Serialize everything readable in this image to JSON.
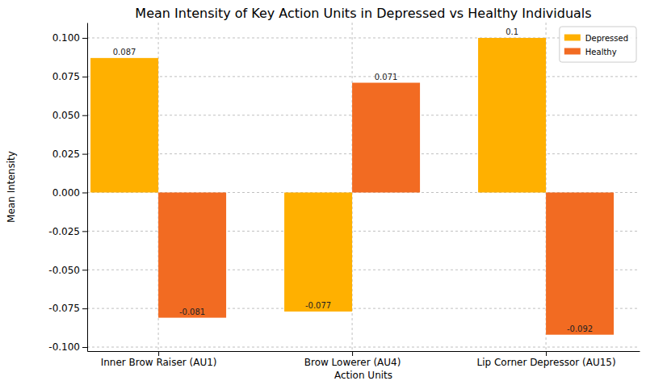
{
  "chart_data": {
    "type": "bar",
    "title": "Mean Intensity of Key Action Units in Depressed vs Healthy Individuals",
    "x_label": "Action Units",
    "y_label": "Mean Intensity",
    "categories": [
      "Inner Brow Raiser (AU1)",
      "Brow Lowerer (AU4)",
      "Lip Corner Depressor (AU15)"
    ],
    "series": [
      {
        "name": "Depressed",
        "color": "#ffb000",
        "values": [
          0.087,
          -0.077,
          0.1
        ]
      },
      {
        "name": "Healthy",
        "color": "#f26b22",
        "values": [
          -0.081,
          0.071,
          -0.092
        ]
      }
    ],
    "ylim": [
      -0.1026,
      0.1099
    ],
    "yticks": [
      {
        "value": -0.1,
        "label": "-0.100"
      },
      {
        "value": -0.075,
        "label": "-0.075"
      },
      {
        "value": -0.05,
        "label": "-0.050"
      },
      {
        "value": -0.025,
        "label": "-0.025"
      },
      {
        "value": 0,
        "label": "0.000"
      },
      {
        "value": 0.025,
        "label": "0.025"
      },
      {
        "value": 0.05,
        "label": "0.050"
      },
      {
        "value": 0.075,
        "label": "0.075"
      },
      {
        "value": 0.1,
        "label": "0.100"
      }
    ],
    "grid": true,
    "legend": "upper right",
    "data_labels": true
  }
}
